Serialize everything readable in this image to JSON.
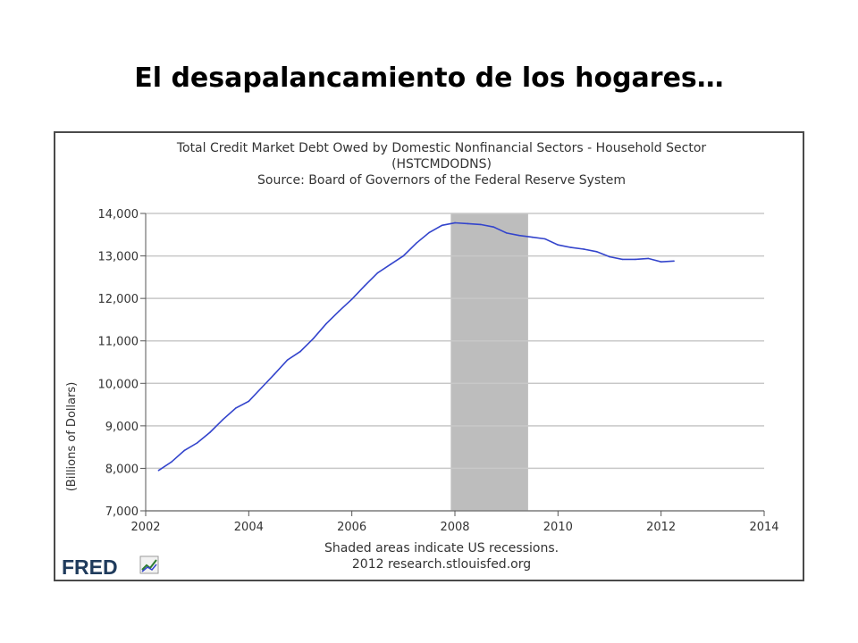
{
  "slide_title": "El desapalancamiento de los hogares…",
  "chart_data": {
    "type": "line",
    "title": "Total Credit Market Debt Owed by Domestic Nonfinancial Sectors - Household Sector",
    "series_id": "(HSTCMDODNS)",
    "source": "Source: Board of Governors of the Federal Reserve System",
    "xlabel": "",
    "ylabel": "(Billions of Dollars)",
    "xlim": [
      2002,
      2014
    ],
    "ylim": [
      7000,
      14000
    ],
    "x_ticks": [
      2002,
      2004,
      2006,
      2008,
      2010,
      2012,
      2014
    ],
    "x_tick_labels": [
      "2002",
      "2004",
      "2006",
      "2008",
      "2010",
      "2012",
      "2014"
    ],
    "y_ticks": [
      7000,
      8000,
      9000,
      10000,
      11000,
      12000,
      13000,
      14000
    ],
    "y_tick_labels": [
      "7,000",
      "8,000",
      "9,000",
      "10,000",
      "11,000",
      "12,000",
      "13,000",
      "14,000"
    ],
    "grid": "horizontal",
    "recession": {
      "start": 2007.92,
      "end": 2009.42
    },
    "series": [
      {
        "color": "#3344cc",
        "x": [
          2002.25,
          2002.5,
          2002.75,
          2003.0,
          2003.25,
          2003.5,
          2003.75,
          2004.0,
          2004.25,
          2004.5,
          2004.75,
          2005.0,
          2005.25,
          2005.5,
          2005.75,
          2006.0,
          2006.25,
          2006.5,
          2006.75,
          2007.0,
          2007.25,
          2007.5,
          2007.75,
          2008.0,
          2008.25,
          2008.5,
          2008.75,
          2009.0,
          2009.25,
          2009.5,
          2009.75,
          2010.0,
          2010.25,
          2010.5,
          2010.75,
          2011.0,
          2011.25,
          2011.5,
          2011.75,
          2012.0,
          2012.25
        ],
        "y": [
          7950,
          8150,
          8420,
          8600,
          8850,
          9150,
          9420,
          9580,
          9900,
          10220,
          10550,
          10750,
          11050,
          11400,
          11700,
          11980,
          12300,
          12600,
          12800,
          13000,
          13300,
          13550,
          13720,
          13780,
          13760,
          13740,
          13680,
          13540,
          13480,
          13440,
          13400,
          13260,
          13200,
          13160,
          13100,
          12980,
          12920,
          12920,
          12940,
          12860,
          12880
        ]
      }
    ],
    "footer_note": "Shaded areas indicate US recessions.",
    "footer_credit": "2012 research.stlouisfed.org",
    "logo_text": "FRED",
    "colors": {
      "line": "#3344cc",
      "recession": "#bdbdbd",
      "grid": "#c8c8c8",
      "axis": "#555555",
      "logo": "#1f3b5c"
    }
  }
}
